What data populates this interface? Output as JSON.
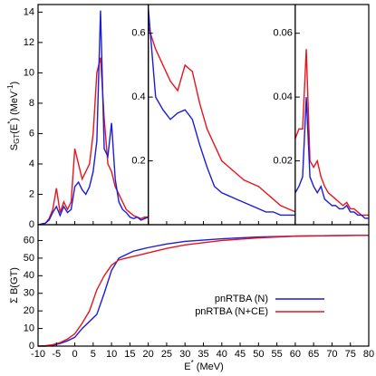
{
  "chart_data": [
    {
      "type": "line",
      "xlim": [
        -10,
        20
      ],
      "ylim": [
        0,
        14.5
      ],
      "yticks": [
        0,
        2,
        4,
        6,
        8,
        10,
        12,
        14
      ],
      "ylabel": [
        "S",
        "GT",
        "(E",
        "*",
        ") (MeV",
        "-1",
        ")"
      ],
      "x": [
        -10,
        -9,
        -8,
        -7,
        -6,
        -5,
        -4,
        -3,
        -2,
        -1,
        0,
        1,
        2,
        3,
        4,
        5,
        6,
        7,
        8,
        9,
        10,
        11,
        12,
        13,
        14,
        15,
        16,
        17,
        18,
        19,
        20
      ],
      "series": [
        {
          "color": "#e8141e",
          "values": [
            0,
            0.05,
            0.1,
            0.4,
            1.0,
            2.4,
            0.8,
            1.5,
            1.0,
            1.5,
            5.0,
            4.0,
            3.0,
            3.5,
            4.0,
            6.0,
            10.0,
            11.0,
            7.0,
            4.0,
            3.5,
            2.5,
            2.0,
            1.5,
            1.0,
            0.8,
            0.6,
            0.5,
            0.4,
            0.5,
            0.5
          ]
        },
        {
          "color": "#1c1cd9",
          "values": [
            0,
            0.05,
            0.1,
            0.3,
            0.8,
            1.2,
            0.6,
            1.2,
            0.8,
            1.0,
            2.5,
            2.8,
            2.3,
            2.0,
            2.5,
            3.5,
            5.5,
            14.1,
            5.0,
            4.5,
            6.7,
            3.0,
            1.5,
            1.0,
            0.8,
            0.5,
            0.4,
            0.5,
            0.3,
            0.4,
            0.5
          ]
        }
      ]
    },
    {
      "type": "line",
      "xlim": [
        20,
        60
      ],
      "ylim": [
        0,
        0.69
      ],
      "yticks": [
        0.2,
        0.4,
        0.6
      ],
      "x": [
        20,
        22,
        24,
        26,
        28,
        30,
        32,
        34,
        36,
        38,
        40,
        42,
        44,
        46,
        48,
        50,
        52,
        54,
        56,
        58,
        60
      ],
      "series": [
        {
          "color": "#e8141e",
          "values": [
            0.62,
            0.55,
            0.5,
            0.45,
            0.42,
            0.5,
            0.48,
            0.38,
            0.3,
            0.25,
            0.2,
            0.18,
            0.16,
            0.14,
            0.13,
            0.12,
            0.1,
            0.08,
            0.06,
            0.05,
            0.04
          ]
        },
        {
          "color": "#1c1cd9",
          "values": [
            0.68,
            0.4,
            0.36,
            0.33,
            0.35,
            0.36,
            0.33,
            0.25,
            0.18,
            0.12,
            0.1,
            0.09,
            0.08,
            0.07,
            0.06,
            0.05,
            0.04,
            0.04,
            0.03,
            0.03,
            0.03
          ]
        }
      ]
    },
    {
      "type": "line",
      "xlim": [
        60,
        80
      ],
      "ylim": [
        0,
        0.069
      ],
      "yticks": [
        0.02,
        0.04,
        0.06
      ],
      "x": [
        60,
        61,
        62,
        63,
        64,
        65,
        66,
        67,
        68,
        69,
        70,
        71,
        72,
        73,
        74,
        75,
        76,
        77,
        78,
        79,
        80
      ],
      "series": [
        {
          "color": "#e8141e",
          "values": [
            0.027,
            0.03,
            0.03,
            0.055,
            0.02,
            0.018,
            0.02,
            0.015,
            0.012,
            0.01,
            0.009,
            0.008,
            0.007,
            0.006,
            0.007,
            0.005,
            0.005,
            0.004,
            0.003,
            0.003,
            0.003
          ]
        },
        {
          "color": "#1c1cd9",
          "values": [
            0.01,
            0.012,
            0.015,
            0.04,
            0.015,
            0.012,
            0.01,
            0.012,
            0.008,
            0.007,
            0.006,
            0.006,
            0.005,
            0.005,
            0.006,
            0.004,
            0.004,
            0.003,
            0.003,
            0.002,
            0.002
          ]
        }
      ]
    },
    {
      "type": "line",
      "xlim": [
        -10,
        80
      ],
      "ylim": [
        0,
        69
      ],
      "yticks": [
        0,
        10,
        20,
        30,
        40,
        50,
        60
      ],
      "xticks": [
        -10,
        -5,
        0,
        5,
        10,
        15,
        20,
        25,
        30,
        35,
        40,
        45,
        50,
        55,
        60,
        65,
        70,
        75,
        80
      ],
      "xlabel": [
        "E",
        "*",
        " (MeV)"
      ],
      "ylabel": "Σ B(GT)",
      "legend": "lower right",
      "x": [
        -10,
        -8,
        -6,
        -4,
        -2,
        0,
        2,
        4,
        6,
        8,
        10,
        12,
        14,
        16,
        18,
        20,
        25,
        30,
        40,
        50,
        60,
        70,
        80
      ],
      "series": [
        {
          "name": "pnRTBA (N)",
          "color": "#1c1cd9",
          "values": [
            0,
            0,
            0.5,
            1.5,
            3,
            5,
            10,
            14,
            18,
            30,
            43,
            50,
            52,
            54,
            55,
            56,
            58,
            59.5,
            61,
            62,
            62.5,
            62.8,
            63
          ]
        },
        {
          "name": "pnRTBA (N+CE)",
          "color": "#e8141e",
          "values": [
            0,
            0.2,
            0.8,
            2,
            4,
            7,
            13,
            20,
            32,
            40,
            46,
            49,
            50,
            51,
            52,
            53,
            55.5,
            57.5,
            60,
            61.5,
            62.5,
            62.8,
            63
          ]
        }
      ]
    }
  ]
}
